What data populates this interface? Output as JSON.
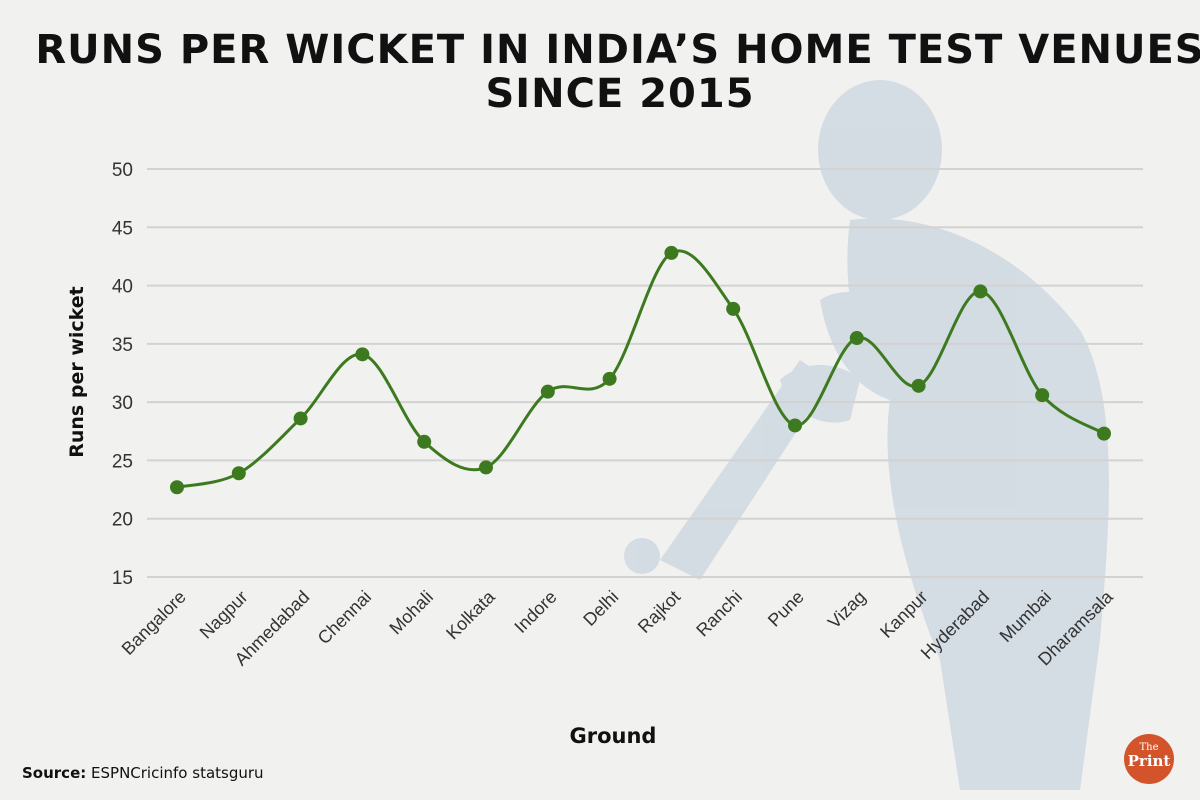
{
  "title": {
    "line1": "RUNS PER WICKET IN INDIA’S HOME TEST VENUES",
    "line2": "SINCE 2015"
  },
  "source": {
    "label": "Source:",
    "text": "ESPNCricinfo statsguru"
  },
  "logo": {
    "small": "The",
    "big": "Print"
  },
  "colors": {
    "line": "#3d7a1f",
    "grid": "#d2d2d2",
    "background": "#f1f1ef"
  },
  "chart_data": {
    "type": "line",
    "title": "RUNS PER WICKET IN INDIA’S HOME TEST VENUES SINCE 2015",
    "xlabel": "Ground",
    "ylabel": "Runs per wicket",
    "ylim": [
      15,
      50
    ],
    "yticks": [
      15,
      20,
      25,
      30,
      35,
      40,
      45,
      50
    ],
    "grid": true,
    "categories": [
      "Bangalore",
      "Nagpur",
      "Ahmedabad",
      "Chennai",
      "Mohali",
      "Kolkata",
      "Indore",
      "Delhi",
      "Rajkot",
      "Ranchi",
      "Pune",
      "Vizag",
      "Kanpur",
      "Hyderabad",
      "Mumbai",
      "Dharamsala"
    ],
    "series": [
      {
        "name": "Runs per wicket",
        "values": [
          22.7,
          23.9,
          28.6,
          34.1,
          26.6,
          24.4,
          30.9,
          32.0,
          42.8,
          38.0,
          28.0,
          35.5,
          31.4,
          39.5,
          30.6,
          27.3
        ]
      }
    ]
  }
}
